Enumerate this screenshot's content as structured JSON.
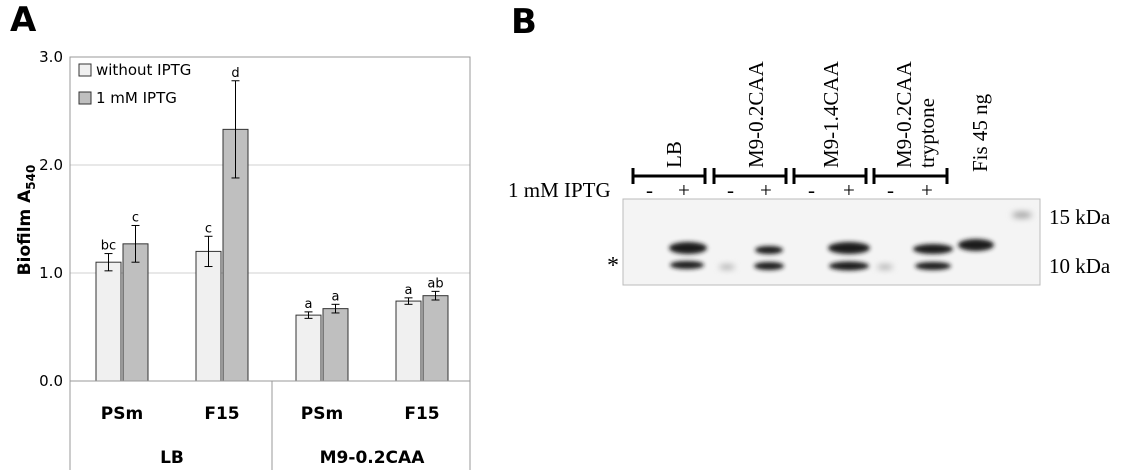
{
  "panel_a": {
    "letter": "A",
    "chart_data": {
      "type": "bar",
      "ylabel": "Biofilm A",
      "ylabel_sub": "540",
      "ylim": [
        0,
        3.0
      ],
      "yticks": [
        0,
        1.0,
        2.0,
        3.0
      ],
      "ytick_labels": [
        "0.0",
        "1.0",
        "2.0",
        "3.0"
      ],
      "grid": true,
      "legend_position": "top-left",
      "categories": [
        "PSm",
        "F15",
        "PSm",
        "F15"
      ],
      "groups": [
        {
          "label": "LB",
          "categories": [
            "PSm",
            "F15"
          ]
        },
        {
          "label": "M9-0.2CAA",
          "categories": [
            "PSm",
            "F15"
          ]
        }
      ],
      "series": [
        {
          "name": "without IPTG",
          "color": "#f0f0f0",
          "values": [
            1.1,
            1.2,
            0.61,
            0.74
          ],
          "errors": [
            0.08,
            0.14,
            0.03,
            0.03
          ],
          "letters": [
            "bc",
            "c",
            "a",
            "a"
          ]
        },
        {
          "name": "1 mM IPTG",
          "color": "#bfbfbf",
          "values": [
            1.27,
            2.33,
            0.67,
            0.79
          ],
          "errors": [
            0.17,
            0.45,
            0.04,
            0.04
          ],
          "letters": [
            "c",
            "d",
            "a",
            "ab"
          ]
        }
      ]
    }
  },
  "panel_b": {
    "letter": "B",
    "lane_groups": [
      {
        "label": "LB"
      },
      {
        "label": "M9-0.2CAA"
      },
      {
        "label": "M9-1.4CAA"
      },
      {
        "label": "M9-0.2CAA",
        "label2": "tryptone"
      }
    ],
    "standard_label": "Fis 45 ng",
    "iptg_row_label": "1 mM IPTG",
    "lane_signs": [
      "-",
      "+",
      "-",
      "+",
      "-",
      "+",
      "-",
      "+"
    ],
    "markers": [
      "15 kDa",
      "10 kDa"
    ],
    "asterisk": "*"
  }
}
